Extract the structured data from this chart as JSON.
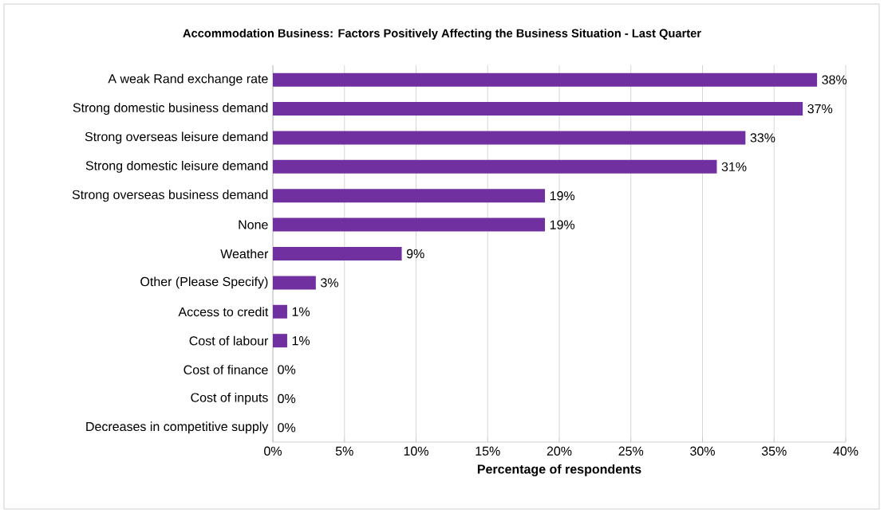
{
  "chart_data": {
    "type": "bar",
    "orientation": "horizontal",
    "title": "Accommodation Business:  Factors Positively Affecting the Business Situation - Last Quarter",
    "xlabel": "Percentage of respondents",
    "categories": [
      "A weak Rand exchange rate",
      "Strong domestic business demand",
      "Strong overseas leisure demand",
      "Strong domestic leisure demand",
      "Strong overseas business demand",
      "None",
      "Weather",
      "Other (Please Specify)",
      "Access to credit",
      "Cost of labour",
      "Cost of finance",
      "Cost of inputs",
      "Decreases in competitive supply"
    ],
    "values": [
      38,
      37,
      33,
      31,
      19,
      19,
      9,
      3,
      1,
      1,
      0,
      0,
      0
    ],
    "value_labels": [
      "38%",
      "37%",
      "33%",
      "31%",
      "19%",
      "19%",
      "9%",
      "3%",
      "1%",
      "1%",
      "0%",
      "0%",
      "0%"
    ],
    "color": "#7030a0",
    "xlim": [
      0,
      40
    ],
    "xticks": [
      {
        "value": 0,
        "label": "0%"
      },
      {
        "value": 5,
        "label": "5%"
      },
      {
        "value": 10,
        "label": "10%"
      },
      {
        "value": 15,
        "label": "15%"
      },
      {
        "value": 20,
        "label": "20%"
      },
      {
        "value": 25,
        "label": "25%"
      },
      {
        "value": 30,
        "label": "30%"
      },
      {
        "value": 35,
        "label": "35%"
      },
      {
        "value": 40,
        "label": "40%"
      }
    ],
    "grid": "x"
  }
}
